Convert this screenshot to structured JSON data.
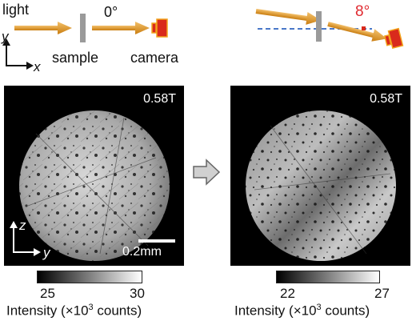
{
  "setup_left": {
    "light_label": "light",
    "angle_label": "0°",
    "sample_label": "sample",
    "camera_label": "camera",
    "axis_y": "y",
    "axis_x": "x"
  },
  "setup_right": {
    "angle_label": "8°",
    "angle_color": "#e0292f"
  },
  "panel_left": {
    "field_label": "0.58T",
    "axis_z": "z",
    "axis_y": "y",
    "scale_label": "0.2mm",
    "colorbar": {
      "min_label": "25",
      "max_label": "30",
      "title_prefix": "Intensity (×10",
      "title_exp": "3",
      "title_suffix": " counts)"
    }
  },
  "panel_right": {
    "field_label": "0.58T",
    "colorbar": {
      "min_label": "22",
      "max_label": "27",
      "title_prefix": "Intensity (×10",
      "title_exp": "3",
      "title_suffix": " counts)"
    }
  },
  "colors": {
    "beam": "#e59a1e",
    "camera_body": "#d92a1c",
    "camera_outline": "#f2a31b",
    "sample": "#9a9a9a",
    "dashed_line": "#4a78c8"
  }
}
